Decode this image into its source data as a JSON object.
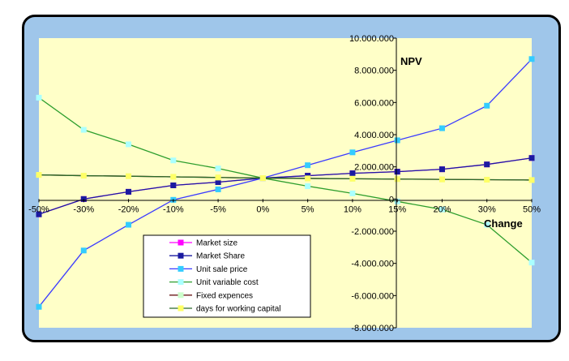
{
  "chart_data": {
    "type": "line",
    "title": "",
    "ylabel": "NPV",
    "xlabel": "Change",
    "categories": [
      "-50%",
      "-30%",
      "-20%",
      "-10%",
      "-5%",
      "0%",
      "5%",
      "10%",
      "15%",
      "20%",
      "30%",
      "50%"
    ],
    "yticks": [
      "10.000.000",
      "8.000.000",
      "6.000.000",
      "4.000.000",
      "2.000.000",
      "0",
      "-2.000.000",
      "-4.000.000",
      "-6.000.000",
      "-8.000.000"
    ],
    "ylim": [
      -8000000,
      10000000
    ],
    "grid": false,
    "legend_position": "bottom-center",
    "plot_background": "#ffffc8",
    "frame_background": "#9fc6ea",
    "series": [
      {
        "name": "Market size",
        "color": "#ff00ff",
        "marker": "square",
        "values": [
          -950000,
          0,
          450000,
          850000,
          1050000,
          1300000,
          1450000,
          1600000,
          1700000,
          1850000,
          2150000,
          2550000
        ]
      },
      {
        "name": "Market Share",
        "color": "#1a1aa0",
        "marker": "square",
        "values": [
          -950000,
          0,
          450000,
          850000,
          1050000,
          1300000,
          1450000,
          1600000,
          1700000,
          1850000,
          2150000,
          2550000
        ]
      },
      {
        "name": "Unit sale price",
        "color": "#3b3bff",
        "marker": "square",
        "values": [
          -6700000,
          -3200000,
          -1600000,
          -50000,
          600000,
          1300000,
          2100000,
          2900000,
          3650000,
          4400000,
          5800000,
          8700000
        ]
      },
      {
        "name": "Unit variable cost",
        "color": "#2e9e2e",
        "marker": "square",
        "values": [
          6300000,
          4300000,
          3400000,
          2400000,
          1900000,
          1300000,
          800000,
          350000,
          -150000,
          -650000,
          -1600000,
          -3950000
        ]
      },
      {
        "name": "Fixed expences",
        "color": "#6b1a1a",
        "marker": "square",
        "values": [
          1500000,
          1450000,
          1420000,
          1380000,
          1340000,
          1300000,
          1280000,
          1260000,
          1240000,
          1220000,
          1200000,
          1180000
        ]
      },
      {
        "name": "days for working capital",
        "color": "#2a6a2a",
        "marker": "square",
        "values": [
          1500000,
          1450000,
          1420000,
          1380000,
          1340000,
          1300000,
          1280000,
          1260000,
          1240000,
          1220000,
          1200000,
          1180000
        ]
      }
    ],
    "marker_colors": [
      "#ff00ff",
      "#1a1aa0",
      "#33ccff",
      "#aaffff",
      "#ccffcc",
      "#ffff66"
    ]
  }
}
